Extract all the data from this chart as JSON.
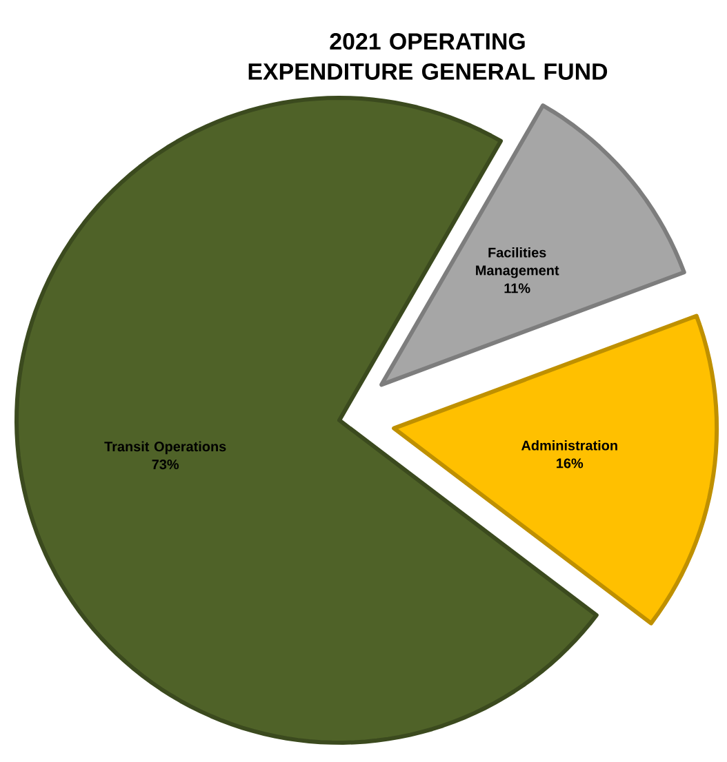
{
  "chart_data": {
    "type": "pie",
    "title": "2021 OPERATING EXPENDITURE GENERAL FUND",
    "categories": [
      "Facilities Management",
      "Administration",
      "Transit Operations"
    ],
    "values": [
      11,
      16,
      73
    ],
    "value_labels": [
      "11%",
      "16%",
      "73%"
    ],
    "colors": [
      "#a6a6a6",
      "#ffc000",
      "#4f6228"
    ]
  }
}
